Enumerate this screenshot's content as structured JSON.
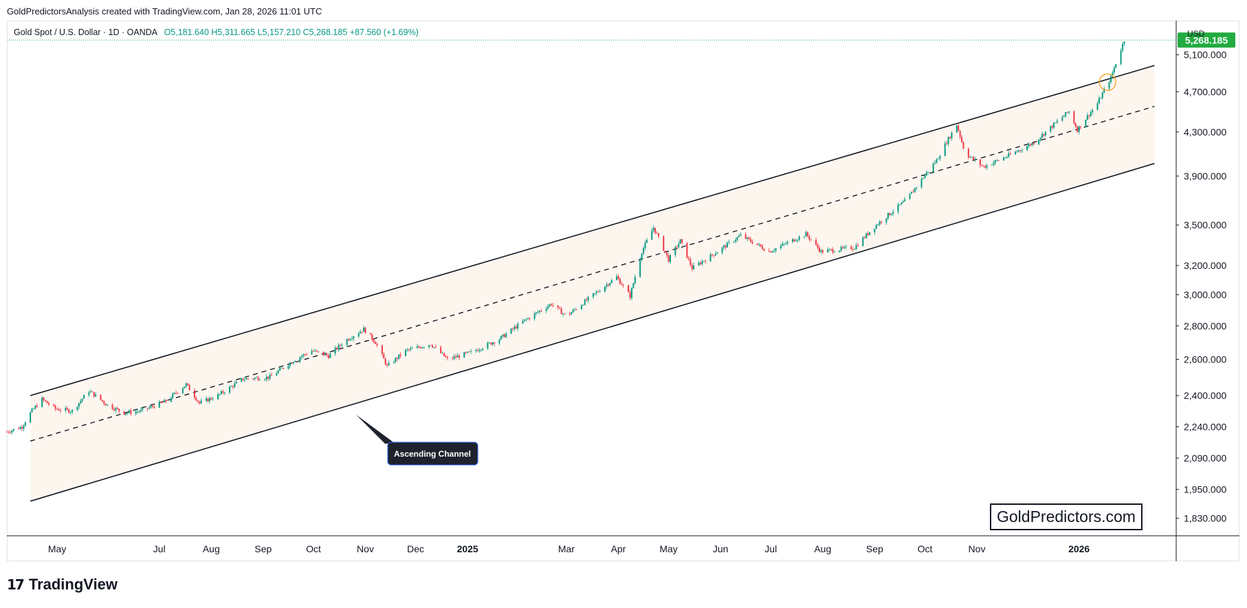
{
  "header": {
    "caption": "GoldPredictorsAnalysis created with TradingView.com, Jan 28, 2026 11:01 UTC"
  },
  "legend": {
    "symbol": "Gold Spot / U.S. Dollar · 1D · OANDA",
    "open": "O5,181.640",
    "high": "H5,311.665",
    "low": "L5,157.210",
    "close": "C5,268.185",
    "change": "+87.560 (+1.69%)"
  },
  "price_axis": {
    "currency": "USD",
    "last_price_label": "5,268.185"
  },
  "annotation": {
    "channel_label": "Ascending Channel"
  },
  "watermark": {
    "text": "GoldPredictors.com"
  },
  "footer": {
    "logo_text": "TradingView"
  },
  "colors": {
    "up": "#089981",
    "down": "#f23645",
    "channel_fill": "#fdf6ef",
    "last_price": "#22ab41",
    "callout": "#1e222d"
  },
  "chart_data": {
    "type": "candlestick",
    "title": "",
    "y_scale": "log",
    "ylim": [
      1760,
      5500
    ],
    "y_ticks": [
      {
        "value": 5100,
        "label": "5,100.000"
      },
      {
        "value": 4700,
        "label": "4,700.000"
      },
      {
        "value": 4300,
        "label": "4,300.000"
      },
      {
        "value": 3900,
        "label": "3,900.000"
      },
      {
        "value": 3500,
        "label": "3,500.000"
      },
      {
        "value": 3200,
        "label": "3,200.000"
      },
      {
        "value": 3000,
        "label": "3,000.000"
      },
      {
        "value": 2800,
        "label": "2,800.000"
      },
      {
        "value": 2600,
        "label": "2,600.000"
      },
      {
        "value": 2400,
        "label": "2,400.000"
      },
      {
        "value": 2240,
        "label": "2,240.000"
      },
      {
        "value": 2090,
        "label": "2,090.000"
      },
      {
        "value": 1950,
        "label": "1,950.000"
      },
      {
        "value": 1830,
        "label": "1,830.000"
      }
    ],
    "x_range": [
      "2024-04-01",
      "2026-02-28"
    ],
    "x_ticks": [
      {
        "date": "2024-05-01",
        "label": "May",
        "bold": false
      },
      {
        "date": "2024-07-01",
        "label": "Jul",
        "bold": false
      },
      {
        "date": "2024-08-01",
        "label": "Aug",
        "bold": false
      },
      {
        "date": "2024-09-01",
        "label": "Sep",
        "bold": false
      },
      {
        "date": "2024-10-01",
        "label": "Oct",
        "bold": false
      },
      {
        "date": "2024-11-01",
        "label": "Nov",
        "bold": false
      },
      {
        "date": "2024-12-01",
        "label": "Dec",
        "bold": false
      },
      {
        "date": "2025-01-01",
        "label": "2025",
        "bold": true
      },
      {
        "date": "2025-03-01",
        "label": "Mar",
        "bold": false
      },
      {
        "date": "2025-04-01",
        "label": "Apr",
        "bold": false
      },
      {
        "date": "2025-05-01",
        "label": "May",
        "bold": false
      },
      {
        "date": "2025-06-01",
        "label": "Jun",
        "bold": false
      },
      {
        "date": "2025-07-01",
        "label": "Jul",
        "bold": false
      },
      {
        "date": "2025-08-01",
        "label": "Aug",
        "bold": false
      },
      {
        "date": "2025-09-01",
        "label": "Sep",
        "bold": false
      },
      {
        "date": "2025-10-01",
        "label": "Oct",
        "bold": false
      },
      {
        "date": "2025-11-01",
        "label": "Nov",
        "bold": false
      },
      {
        "date": "2026-01-01",
        "label": "2026",
        "bold": true
      }
    ],
    "price_path": [
      [
        "2024-04-01",
        2215
      ],
      [
        "2024-04-10",
        2240
      ],
      [
        "2024-04-15",
        2310
      ],
      [
        "2024-04-22",
        2380
      ],
      [
        "2024-04-30",
        2330
      ],
      [
        "2024-05-10",
        2320
      ],
      [
        "2024-05-20",
        2425
      ],
      [
        "2024-05-31",
        2350
      ],
      [
        "2024-06-10",
        2310
      ],
      [
        "2024-06-20",
        2320
      ],
      [
        "2024-07-05",
        2370
      ],
      [
        "2024-07-17",
        2460
      ],
      [
        "2024-07-25",
        2360
      ],
      [
        "2024-08-05",
        2400
      ],
      [
        "2024-08-20",
        2490
      ],
      [
        "2024-09-05",
        2500
      ],
      [
        "2024-09-20",
        2600
      ],
      [
        "2024-09-30",
        2650
      ],
      [
        "2024-10-10",
        2620
      ],
      [
        "2024-10-20",
        2710
      ],
      [
        "2024-10-31",
        2780
      ],
      [
        "2024-11-07",
        2700
      ],
      [
        "2024-11-14",
        2560
      ],
      [
        "2024-11-25",
        2650
      ],
      [
        "2024-12-10",
        2690
      ],
      [
        "2024-12-20",
        2600
      ],
      [
        "2025-01-03",
        2640
      ],
      [
        "2025-01-20",
        2720
      ],
      [
        "2025-02-05",
        2840
      ],
      [
        "2025-02-20",
        2940
      ],
      [
        "2025-03-01",
        2860
      ],
      [
        "2025-03-15",
        2980
      ],
      [
        "2025-03-31",
        3120
      ],
      [
        "2025-04-08",
        2990
      ],
      [
        "2025-04-15",
        3300
      ],
      [
        "2025-04-22",
        3480
      ],
      [
        "2025-05-01",
        3240
      ],
      [
        "2025-05-08",
        3380
      ],
      [
        "2025-05-15",
        3180
      ],
      [
        "2025-05-30",
        3300
      ],
      [
        "2025-06-13",
        3420
      ],
      [
        "2025-06-30",
        3300
      ],
      [
        "2025-07-22",
        3430
      ],
      [
        "2025-07-31",
        3300
      ],
      [
        "2025-08-20",
        3330
      ],
      [
        "2025-09-02",
        3500
      ],
      [
        "2025-09-20",
        3700
      ],
      [
        "2025-10-08",
        4040
      ],
      [
        "2025-10-20",
        4370
      ],
      [
        "2025-10-25",
        4100
      ],
      [
        "2025-11-05",
        3980
      ],
      [
        "2025-11-20",
        4080
      ],
      [
        "2025-12-05",
        4200
      ],
      [
        "2025-12-26",
        4500
      ],
      [
        "2025-12-31",
        4320
      ],
      [
        "2026-01-12",
        4580
      ],
      [
        "2026-01-20",
        4850
      ],
      [
        "2026-01-28",
        5268.185
      ]
    ],
    "last_price": 5268.185,
    "channel": {
      "start_date": "2024-04-15",
      "end_date": "2026-02-15",
      "upper": [
        2400,
        4980
      ],
      "middle": [
        2170,
        4550
      ],
      "lower": [
        1900,
        4010
      ]
    }
  }
}
